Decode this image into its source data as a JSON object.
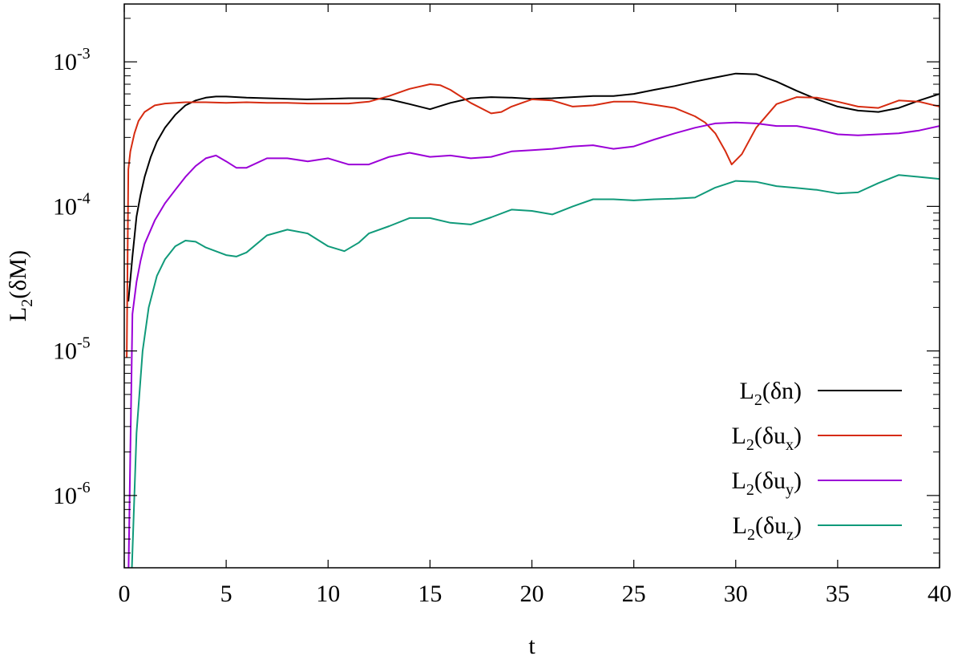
{
  "chart_data": {
    "type": "line",
    "xlabel": "t",
    "ylabel": {
      "main": "L",
      "sub": "2",
      "rest": "(δM)"
    },
    "xlim": [
      0,
      40
    ],
    "ylim_log10": [
      -6.5,
      -2.6
    ],
    "y_scale": "log",
    "grid": false,
    "legend_position": "bottom-right",
    "x_ticks": [
      0,
      5,
      10,
      15,
      20,
      25,
      30,
      35,
      40
    ],
    "y_ticks": [
      {
        "exp": -6,
        "base": "10",
        "label": "-6"
      },
      {
        "exp": -5,
        "base": "10",
        "label": "-5"
      },
      {
        "exp": -4,
        "base": "10",
        "label": "-4"
      },
      {
        "exp": -3,
        "base": "10",
        "label": "-3"
      }
    ],
    "series": [
      {
        "name": "L2(δn)",
        "legend": {
          "main": "L",
          "sub": "2",
          "var": "(δn",
          "var_sub": "",
          "close": ")"
        },
        "color": "#000000",
        "x": [
          0.2,
          0.4,
          0.6,
          0.8,
          1.0,
          1.3,
          1.6,
          2.0,
          2.5,
          3.0,
          3.5,
          4.0,
          4.5,
          5.0,
          6,
          7,
          8,
          9,
          10,
          11,
          12,
          13,
          14,
          15,
          16,
          17,
          18,
          19,
          20,
          21,
          22,
          23,
          24,
          25,
          26,
          27,
          28,
          29,
          30,
          31,
          32,
          33,
          34,
          35,
          36,
          37,
          38,
          39,
          40
        ],
        "y": [
          2.2e-05,
          4.5e-05,
          8.5e-05,
          0.00012,
          0.00016,
          0.00022,
          0.00028,
          0.00035,
          0.00043,
          0.0005,
          0.00054,
          0.000565,
          0.000575,
          0.000575,
          0.000565,
          0.00056,
          0.000555,
          0.00055,
          0.000555,
          0.00056,
          0.00056,
          0.00055,
          0.00051,
          0.00047,
          0.00052,
          0.00056,
          0.00057,
          0.000565,
          0.000555,
          0.00056,
          0.00057,
          0.00058,
          0.00058,
          0.0006,
          0.00064,
          0.00068,
          0.00073,
          0.00078,
          0.00083,
          0.00082,
          0.00073,
          0.00063,
          0.00055,
          0.00049,
          0.00046,
          0.00045,
          0.00048,
          0.00054,
          0.0006
        ]
      },
      {
        "name": "L2(δux)",
        "legend": {
          "main": "L",
          "sub": "2",
          "var": "(δu",
          "var_sub": "x",
          "close": ")"
        },
        "color": "#d62b10",
        "x": [
          0.12,
          0.2,
          0.3,
          0.5,
          0.7,
          1.0,
          1.5,
          2.0,
          3,
          4,
          5,
          6,
          7,
          8,
          9,
          10,
          11,
          12,
          13,
          14,
          15,
          15.5,
          16,
          17,
          18,
          18.5,
          19,
          20,
          21,
          22,
          23,
          24,
          25,
          26,
          27,
          28,
          28.5,
          29,
          29.5,
          29.8,
          30.3,
          31,
          32,
          33,
          34,
          35,
          36,
          37,
          38,
          39,
          40
        ],
        "y": [
          9e-06,
          0.00018,
          0.00024,
          0.00032,
          0.00039,
          0.00045,
          0.0005,
          0.000515,
          0.000525,
          0.000525,
          0.00052,
          0.000525,
          0.00052,
          0.00052,
          0.000515,
          0.000515,
          0.000515,
          0.00053,
          0.00058,
          0.00065,
          0.0007,
          0.00069,
          0.00064,
          0.00052,
          0.00044,
          0.00045,
          0.00049,
          0.00055,
          0.00054,
          0.00049,
          0.0005,
          0.00053,
          0.00053,
          0.000505,
          0.00048,
          0.00042,
          0.00038,
          0.00032,
          0.00024,
          0.000195,
          0.00023,
          0.00035,
          0.00051,
          0.00057,
          0.000565,
          0.00053,
          0.00049,
          0.00048,
          0.00054,
          0.00053,
          0.00049
        ]
      },
      {
        "name": "L2(δuy)",
        "legend": {
          "main": "L",
          "sub": "2",
          "var": "(δu",
          "var_sub": "y",
          "close": ")"
        },
        "color": "#9b00d7",
        "x": [
          0.2,
          0.4,
          0.6,
          0.8,
          1.0,
          1.5,
          2.0,
          2.5,
          3,
          3.5,
          4,
          4.5,
          5,
          5.5,
          6,
          7,
          8,
          9,
          10,
          11,
          12,
          13,
          14,
          15,
          16,
          17,
          18,
          19,
          20,
          21,
          22,
          23,
          24,
          25,
          26,
          27,
          28,
          29,
          30,
          31,
          32,
          33,
          34,
          35,
          36,
          37,
          38,
          39,
          40
        ],
        "y": [
          2.5e-07,
          1.8e-05,
          3e-05,
          4.2e-05,
          5.5e-05,
          8e-05,
          0.000105,
          0.00013,
          0.00016,
          0.00019,
          0.000215,
          0.000225,
          0.000205,
          0.000185,
          0.000185,
          0.000215,
          0.000215,
          0.000205,
          0.000215,
          0.000195,
          0.000195,
          0.00022,
          0.000235,
          0.00022,
          0.000225,
          0.000215,
          0.00022,
          0.00024,
          0.000245,
          0.00025,
          0.00026,
          0.000265,
          0.00025,
          0.00026,
          0.00029,
          0.00032,
          0.00035,
          0.000375,
          0.00038,
          0.000375,
          0.00036,
          0.00036,
          0.00034,
          0.000315,
          0.00031,
          0.000315,
          0.00032,
          0.000335,
          0.00036
        ]
      },
      {
        "name": "L2(δuz)",
        "legend": {
          "main": "L",
          "sub": "2",
          "var": "(δu",
          "var_sub": "z",
          "close": ")"
        },
        "color": "#109a7a",
        "x": [
          0.35,
          0.6,
          0.9,
          1.2,
          1.6,
          2.0,
          2.5,
          3.0,
          3.5,
          4,
          5,
          5.5,
          6,
          7,
          8,
          9,
          10,
          10.8,
          11.5,
          12,
          13,
          14,
          15,
          16,
          17,
          18,
          19,
          20,
          21,
          22,
          23,
          24,
          25,
          26,
          27,
          28,
          29,
          30,
          31,
          32,
          33,
          34,
          35,
          36,
          37,
          38,
          39,
          40
        ],
        "y": [
          2.5e-07,
          2.7e-06,
          1e-05,
          2e-05,
          3.3e-05,
          4.3e-05,
          5.3e-05,
          5.8e-05,
          5.7e-05,
          5.2e-05,
          4.6e-05,
          4.5e-05,
          4.8e-05,
          6.3e-05,
          6.9e-05,
          6.5e-05,
          5.3e-05,
          4.9e-05,
          5.6e-05,
          6.5e-05,
          7.3e-05,
          8.3e-05,
          8.3e-05,
          7.7e-05,
          7.5e-05,
          8.4e-05,
          9.5e-05,
          9.3e-05,
          8.8e-05,
          0.0001,
          0.000112,
          0.000112,
          0.00011,
          0.000112,
          0.000113,
          0.000115,
          0.000135,
          0.00015,
          0.000148,
          0.000138,
          0.000134,
          0.00013,
          0.000123,
          0.000125,
          0.000145,
          0.000165,
          0.00016,
          0.000155
        ]
      }
    ]
  }
}
